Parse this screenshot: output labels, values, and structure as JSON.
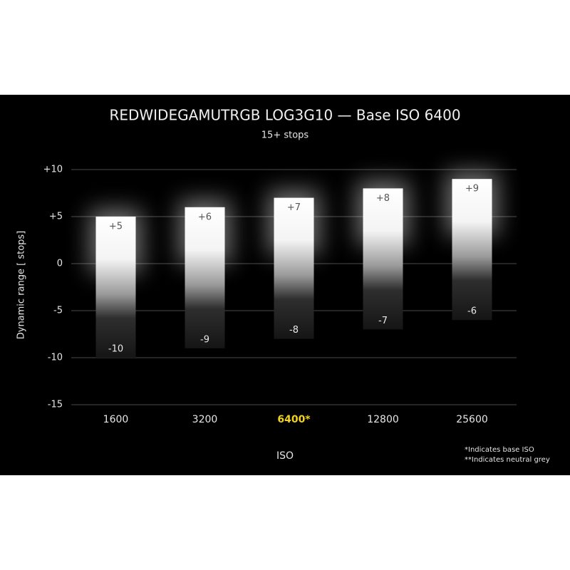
{
  "chart_data": {
    "type": "range_bar",
    "title": "REDWIDEGAMUTRGB LOG3G10 — Base ISO 6400",
    "subtitle": "15+ stops",
    "y_label": "Dynamic range [ stops]",
    "x_label": "ISO",
    "categories": [
      "1600",
      "3200",
      "6400*",
      "12800",
      "25600"
    ],
    "highlight_category": 2,
    "highlight_color": "#f2d21b",
    "series": [
      {
        "values": [
          5,
          6,
          7,
          8,
          9
        ],
        "value_labels": [
          "+5",
          "+6",
          "+7",
          "+8",
          "+9"
        ]
      },
      {
        "values": [
          -10,
          -9,
          -8,
          -7,
          -6
        ]
      }
    ],
    "ylim": [
      -15,
      10
    ],
    "yticks": [
      {
        "value": 10,
        "label": "+10"
      },
      {
        "value": 5,
        "label": "+5"
      },
      0,
      -5,
      -10,
      -15
    ],
    "grid": true,
    "footnotes": [
      "*Indicates base ISO",
      "**Indicates neutral grey"
    ]
  }
}
